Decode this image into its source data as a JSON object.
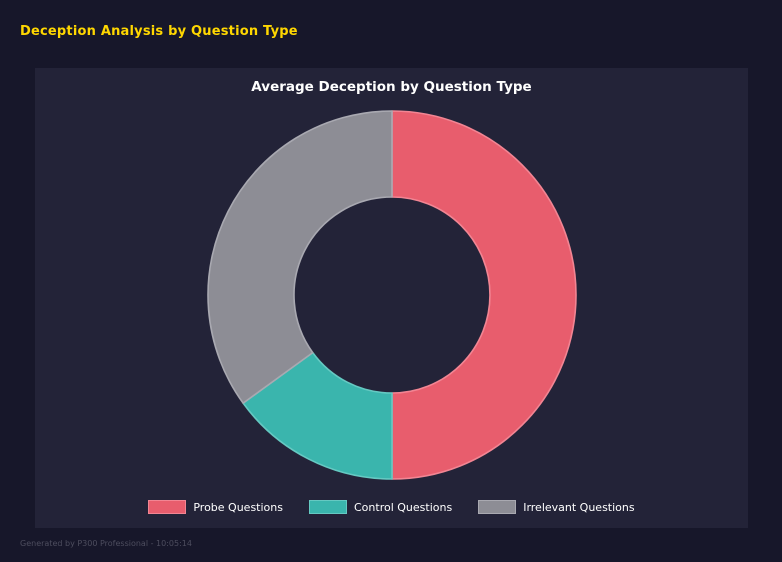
{
  "page": {
    "title": "Deception Analysis by Question Type",
    "footer": "Generated by P300 Professional - 10:05:14"
  },
  "chart_data": {
    "type": "pie",
    "title": "Average Deception by Question Type",
    "labels": [
      "Probe Questions",
      "Control Questions",
      "Irrelevant Questions"
    ],
    "values": [
      50,
      15,
      35
    ],
    "colors": [
      "#e85d6d",
      "#3ab5ad",
      "#8d8d95"
    ],
    "edge_colors": [
      "#f28593",
      "#65c9c2",
      "#a9a9b1"
    ],
    "donut": true,
    "inner_radius_ratio": 0.53,
    "start_angle_deg": 0,
    "direction": "clockwise",
    "legend_position": "bottom",
    "background_color": "#232338",
    "page_background_color": "#17172a",
    "title_color": "#ffd700"
  }
}
